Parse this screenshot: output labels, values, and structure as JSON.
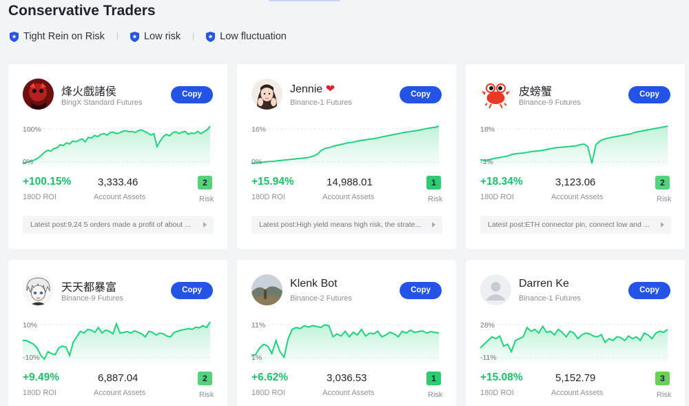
{
  "page": {
    "title": "Conservative Traders",
    "tags": [
      "Tight Rein on Risk",
      "Low risk",
      "Low fluctuation"
    ],
    "tag_icon": "shield-star-icon"
  },
  "labels": {
    "copy": "Copy",
    "roi_label": "180D ROI",
    "assets_label": "Account Assets",
    "risk_label": "Risk"
  },
  "colors": {
    "accent": "#2354e6",
    "positive": "#1fbf6a",
    "risk1": "#2ecc71",
    "risk2": "#55d27a",
    "risk3": "#6ccf59"
  },
  "traders": [
    {
      "name": "烽火戲諸侯",
      "exchange": "BingX Standard Futures",
      "avatar": "red-creature-avatar",
      "roi": "+100.15%",
      "assets": "3,333.46",
      "risk": "2",
      "post": "Latest post:9.24 5 orders made a profit of about ...",
      "chart": {
        "y_top": "100%",
        "y_bottom": "0%",
        "points": [
          0,
          0.02,
          0.05,
          0.07,
          0.1,
          0.15,
          0.22,
          0.3,
          0.35,
          0.33,
          0.4,
          0.42,
          0.5,
          0.48,
          0.55,
          0.52,
          0.6,
          0.58,
          0.62,
          0.66,
          0.58,
          0.7,
          0.68,
          0.75,
          0.72,
          0.78,
          0.8,
          0.76,
          0.83,
          0.84,
          0.8,
          0.82,
          0.86,
          0.88,
          0.85,
          0.86,
          0.83,
          0.88,
          0.9,
          0.86,
          0.82,
          0.76,
          0.8,
          0.45,
          0.6,
          0.72,
          0.78,
          0.74,
          0.82,
          0.85,
          0.8,
          0.84,
          0.86,
          0.78,
          0.82,
          0.8,
          0.86,
          0.8,
          0.85,
          0.9,
          1.0
        ]
      }
    },
    {
      "name": "Jennie",
      "exchange": "Binance-1 Futures",
      "avatar": "girl-photo-avatar",
      "roi": "+15.94%",
      "assets": "14,988.01",
      "risk": "1",
      "post": "Latest post:High yield means high risk, the strate...",
      "chart": {
        "y_top": "16%",
        "y_bottom": "0%",
        "points": [
          0,
          0.01,
          0.02,
          0.03,
          0.04,
          0.05,
          0.05,
          0.07,
          0.08,
          0.09,
          0.1,
          0.11,
          0.12,
          0.13,
          0.14,
          0.15,
          0.17,
          0.2,
          0.25,
          0.35,
          0.4,
          0.42,
          0.45,
          0.48,
          0.5,
          0.52,
          0.55,
          0.56,
          0.58,
          0.6,
          0.62,
          0.63,
          0.65,
          0.66,
          0.68,
          0.7,
          0.72,
          0.74,
          0.76,
          0.78,
          0.8,
          0.82,
          0.84,
          0.85,
          0.87,
          0.88,
          0.9,
          0.92,
          0.94,
          0.96,
          0.97,
          1.0
        ]
      }
    },
    {
      "name": "皮螃蟹",
      "exchange": "Binance-9 Futures",
      "avatar": "crab-avatar",
      "roi": "+18.34%",
      "assets": "3,123.06",
      "risk": "2",
      "post": "Latest post:ETH connector pin, connect low and ...",
      "chart": {
        "y_top": "18%",
        "y_bottom": "-3%",
        "points": [
          0.1,
          0.08,
          0.09,
          0.12,
          0.14,
          0.16,
          0.18,
          0.2,
          0.24,
          0.26,
          0.27,
          0.28,
          0.3,
          0.32,
          0.33,
          0.34,
          0.36,
          0.38,
          0.4,
          0.42,
          0.43,
          0.44,
          0.45,
          0.46,
          0.47,
          0.5,
          0.52,
          0.45,
          0.0,
          0.5,
          0.6,
          0.65,
          0.68,
          0.7,
          0.72,
          0.74,
          0.76,
          0.78,
          0.8,
          0.84,
          0.86,
          0.88,
          0.9,
          0.92,
          0.94,
          0.96,
          0.98,
          1.0
        ]
      }
    },
    {
      "name": "天天都暴富",
      "exchange": "Binance-9 Futures",
      "avatar": "anime-boy-avatar",
      "roi": "+9.49%",
      "assets": "6,887.04",
      "risk": "2",
      "post": "",
      "chart": {
        "y_top": "10%",
        "y_bottom": "-10%",
        "points": [
          0.5,
          0.5,
          0.45,
          0.4,
          0.3,
          0.1,
          0.0,
          0.2,
          0.15,
          0.12,
          0.3,
          0.35,
          0.32,
          0.1,
          0.45,
          0.6,
          0.75,
          0.7,
          0.8,
          0.78,
          0.72,
          0.85,
          0.7,
          0.78,
          0.75,
          0.68,
          0.95,
          0.7,
          0.72,
          0.74,
          0.7,
          0.76,
          0.72,
          0.68,
          0.6,
          0.75,
          0.72,
          0.65,
          0.7,
          0.68,
          0.62,
          0.6,
          0.72,
          0.75,
          0.78,
          0.8,
          0.82,
          0.8,
          0.86,
          0.84,
          0.9,
          0.85,
          1.0
        ]
      }
    },
    {
      "name": "Klenk Bot",
      "exchange": "Binance-2 Futures",
      "avatar": "landscape-avatar",
      "roi": "+6.62%",
      "assets": "3,036.53",
      "risk": "1",
      "post": "",
      "chart": {
        "y_top": "11%",
        "y_bottom": "1%",
        "points": [
          0.1,
          0.12,
          0.3,
          0.4,
          0.35,
          0.15,
          0.5,
          0.2,
          0.05,
          0.55,
          0.8,
          0.85,
          0.82,
          0.9,
          0.86,
          0.9,
          0.88,
          0.85,
          0.92,
          0.9,
          0.6,
          0.68,
          0.62,
          0.75,
          0.6,
          0.72,
          0.65,
          0.8,
          0.62,
          0.7,
          0.68,
          0.75,
          0.6,
          0.65,
          0.72,
          0.68,
          0.6,
          0.75,
          0.7,
          0.78,
          0.72,
          0.74,
          0.76,
          0.7,
          0.74,
          0.72,
          0.7
        ]
      }
    },
    {
      "name": "Darren Ke",
      "exchange": "Binance-1 Futures",
      "avatar": "default-user-avatar",
      "roi": "+15.08%",
      "assets": "5,152.79",
      "risk": "3",
      "post": "",
      "chart": {
        "y_top": "28%",
        "y_bottom": "-11%",
        "points": [
          0.3,
          0.4,
          0.5,
          0.6,
          0.55,
          0.62,
          0.35,
          0.4,
          0.2,
          0.5,
          0.55,
          0.6,
          0.85,
          0.75,
          0.8,
          0.7,
          0.88,
          0.72,
          0.75,
          0.65,
          0.8,
          0.72,
          0.6,
          0.75,
          0.7,
          0.55,
          0.65,
          0.7,
          0.68,
          0.62,
          0.6,
          0.66,
          0.45,
          0.55,
          0.5,
          0.6,
          0.58,
          0.5,
          0.62,
          0.55,
          0.6,
          0.5,
          0.7,
          0.65,
          0.55,
          0.7,
          0.75,
          0.72,
          0.8
        ]
      }
    }
  ]
}
